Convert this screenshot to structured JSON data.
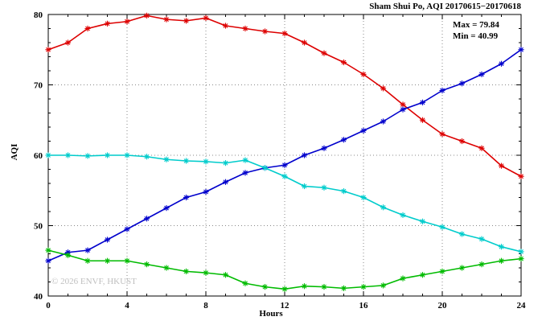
{
  "title": "Sham Shui Po, AQI 20170615−20170618",
  "watermark": "© 2026 ENVF, HKUST",
  "annotation": {
    "max": "Max = 79.84",
    "min": "Min = 40.99"
  },
  "chart_data": {
    "type": "line",
    "title": "Sham Shui Po, AQI 20170615−20170618",
    "xlabel": "Hours",
    "ylabel": "AQI",
    "xlim": [
      0,
      24
    ],
    "ylim": [
      40,
      80
    ],
    "x_ticks": [
      0,
      4,
      8,
      12,
      16,
      20,
      24
    ],
    "y_ticks": [
      40,
      50,
      60,
      70,
      80
    ],
    "grid": true,
    "legend": "none",
    "marker": "asterisk",
    "x": [
      0,
      1,
      2,
      3,
      4,
      5,
      6,
      7,
      8,
      9,
      10,
      11,
      12,
      13,
      14,
      15,
      16,
      17,
      18,
      19,
      20,
      21,
      22,
      23,
      24
    ],
    "series": [
      {
        "name": "series-red",
        "color": "#dd0000",
        "values": [
          75.0,
          76.0,
          78.0,
          78.7,
          79.0,
          79.84,
          79.3,
          79.1,
          79.5,
          78.4,
          78.0,
          77.6,
          77.3,
          76.0,
          74.5,
          73.2,
          71.5,
          69.5,
          67.2,
          65.0,
          63.0,
          62.0,
          61.0,
          58.5,
          57.0
        ]
      },
      {
        "name": "series-blue",
        "color": "#0000cc",
        "values": [
          45.0,
          46.2,
          46.5,
          48.0,
          49.5,
          51.0,
          52.5,
          54.0,
          54.8,
          56.2,
          57.5,
          58.2,
          58.6,
          60.0,
          61.0,
          62.2,
          63.5,
          64.8,
          66.5,
          67.5,
          69.2,
          70.2,
          71.5,
          73.0,
          75.0
        ]
      },
      {
        "name": "series-cyan",
        "color": "#00cccc",
        "values": [
          60.0,
          60.0,
          59.9,
          60.0,
          60.0,
          59.8,
          59.4,
          59.2,
          59.1,
          58.9,
          59.3,
          58.2,
          57.0,
          55.6,
          55.4,
          54.9,
          54.0,
          52.6,
          51.5,
          50.6,
          49.8,
          48.8,
          48.1,
          47.0,
          46.3
        ]
      },
      {
        "name": "series-green",
        "color": "#00bb00",
        "values": [
          46.5,
          45.8,
          45.0,
          45.0,
          45.0,
          44.5,
          44.0,
          43.5,
          43.3,
          43.0,
          41.8,
          41.3,
          40.99,
          41.4,
          41.3,
          41.1,
          41.3,
          41.5,
          42.5,
          43.0,
          43.5,
          44.0,
          44.5,
          45.0,
          45.3
        ]
      }
    ],
    "annotations": [
      "Max = 79.84",
      "Min = 40.99"
    ]
  }
}
